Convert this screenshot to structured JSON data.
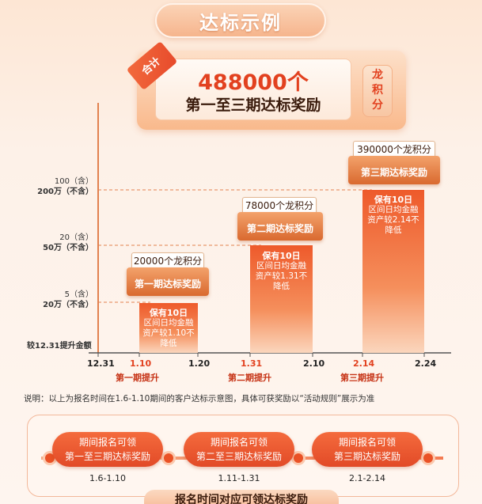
{
  "header": {
    "title": "达标示例"
  },
  "total": {
    "tag": "合计",
    "amount": "488000个",
    "subtitle": "第一至三期达标奖励",
    "side_label": "龙积分"
  },
  "chart": {
    "y_labels": [
      {
        "line1": "100（含）",
        "line2": "200万（不含）"
      },
      {
        "line1": "20（含）",
        "line2": "50万（不含）"
      },
      {
        "line1": "5（含）",
        "line2": "20万（不含）"
      }
    ],
    "y_base_label": "较12.31提升金额",
    "bars": [
      {
        "text1": "保有10日",
        "text2": "区间日均金融",
        "text3": "资产较1.10不",
        "text4": "降低"
      },
      {
        "text1": "保有10日",
        "text2": "区间日均金融",
        "text3": "资产较1.31不",
        "text4": "降低"
      },
      {
        "text1": "保有10日",
        "text2": "区间日均金融",
        "text3": "资产较2.14不",
        "text4": "降低"
      }
    ],
    "rewards": [
      {
        "amount": "20000个龙积分",
        "label": "第一期达标奖励"
      },
      {
        "amount": "78000个龙积分",
        "label": "第二期达标奖励"
      },
      {
        "amount": "390000个龙积分",
        "label": "第三期达标奖励"
      }
    ],
    "x_labels": [
      "12.31",
      "1.10",
      "1.20",
      "1.31",
      "2.10",
      "2.14",
      "2.24"
    ],
    "phases": [
      "第一期提升",
      "第二期提升",
      "第三期提升"
    ]
  },
  "note": "说明：以上为报名时间在1.6-1.10期间的客户达标示意图，具体可获奖励以“活动规则”展示为准",
  "timeline": {
    "items": [
      {
        "line1": "期间报名可领",
        "line2": "第一至三期达标奖励",
        "date": "1.6-1.10"
      },
      {
        "line1": "期间报名可领",
        "line2": "第二至三期达标奖励",
        "date": "1.11-1.31"
      },
      {
        "line1": "期间报名可领",
        "line2": "第三期达标奖励",
        "date": "2.1-2.14"
      }
    ],
    "banner": "报名时间对应可领达标奖励"
  }
}
